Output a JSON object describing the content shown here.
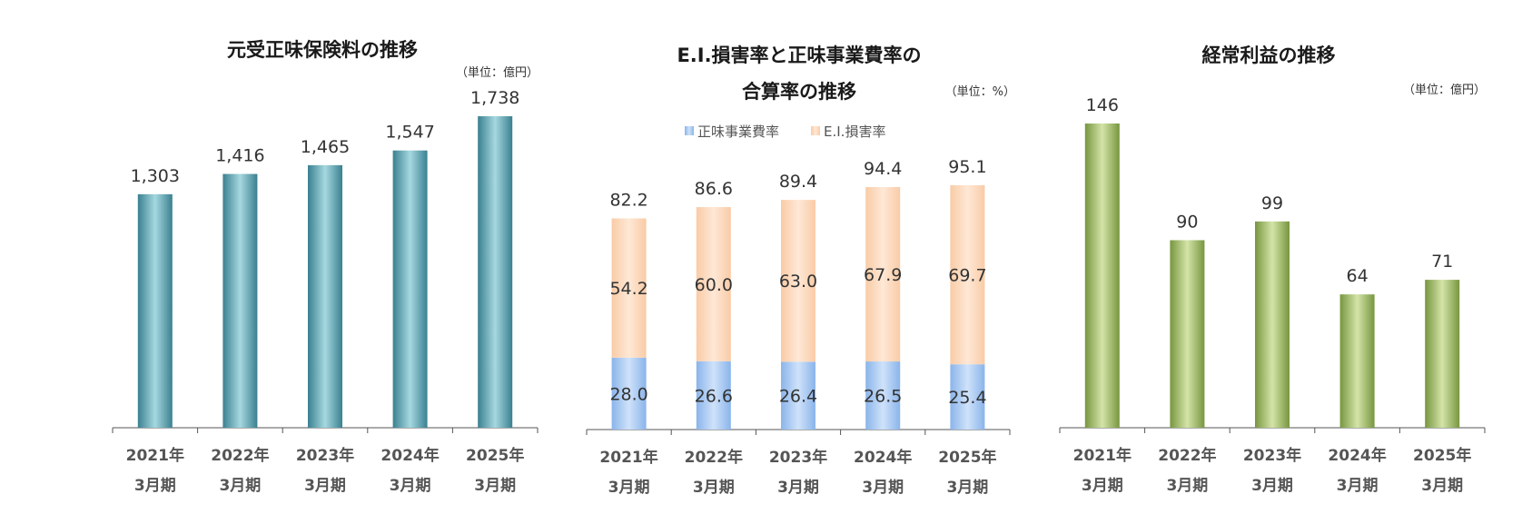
{
  "chart_data": [
    {
      "type": "bar",
      "title": "元受正味保険料の推移",
      "unit": "（単位：億円）",
      "categories": [
        {
          "year": "2021年",
          "period": "3月期"
        },
        {
          "year": "2022年",
          "period": "3月期"
        },
        {
          "year": "2023年",
          "period": "3月期"
        },
        {
          "year": "2024年",
          "period": "3月期"
        },
        {
          "year": "2025年",
          "period": "3月期"
        }
      ],
      "values": [
        1303,
        1416,
        1465,
        1547,
        1738
      ],
      "labels": [
        "1,303",
        "1,416",
        "1,465",
        "1,547",
        "1,738"
      ],
      "ylim": [
        0,
        1800
      ],
      "color": "#4a9aa8"
    },
    {
      "type": "stacked-bar",
      "title_line1": "E.I.損害率と正味事業費率の",
      "title_line2": "合算率の推移",
      "unit": "（単位：%）",
      "categories": [
        {
          "year": "2021年",
          "period": "3月期"
        },
        {
          "year": "2022年",
          "period": "3月期"
        },
        {
          "year": "2023年",
          "period": "3月期"
        },
        {
          "year": "2024年",
          "period": "3月期"
        },
        {
          "year": "2025年",
          "period": "3月期"
        }
      ],
      "series": [
        {
          "name": "正味事業費率",
          "values": [
            28.0,
            26.6,
            26.4,
            26.5,
            25.4
          ],
          "labels": [
            "28.0",
            "26.6",
            "26.4",
            "26.5",
            "25.4"
          ],
          "color": "#a8c8f0"
        },
        {
          "name": "E.I.損害率",
          "values": [
            54.2,
            60.0,
            63.0,
            67.9,
            69.7
          ],
          "labels": [
            "54.2",
            "60.0",
            "63.0",
            "67.9",
            "69.7"
          ],
          "color": "#fcd9bc"
        }
      ],
      "totals": [
        82.2,
        86.6,
        89.4,
        94.4,
        95.1
      ],
      "total_labels": [
        "82.2",
        "86.6",
        "89.4",
        "94.4",
        "95.1"
      ],
      "ylim": [
        0,
        100
      ]
    },
    {
      "type": "bar",
      "title": "経常利益の推移",
      "unit": "（単位：億円）",
      "categories": [
        {
          "year": "2021年",
          "period": "3月期"
        },
        {
          "year": "2022年",
          "period": "3月期"
        },
        {
          "year": "2023年",
          "period": "3月期"
        },
        {
          "year": "2024年",
          "period": "3月期"
        },
        {
          "year": "2025年",
          "period": "3月期"
        }
      ],
      "values": [
        146,
        90,
        99,
        64,
        71
      ],
      "labels": [
        "146",
        "90",
        "99",
        "64",
        "71"
      ],
      "ylim": [
        0,
        160
      ],
      "color": "#8fac5a"
    }
  ]
}
